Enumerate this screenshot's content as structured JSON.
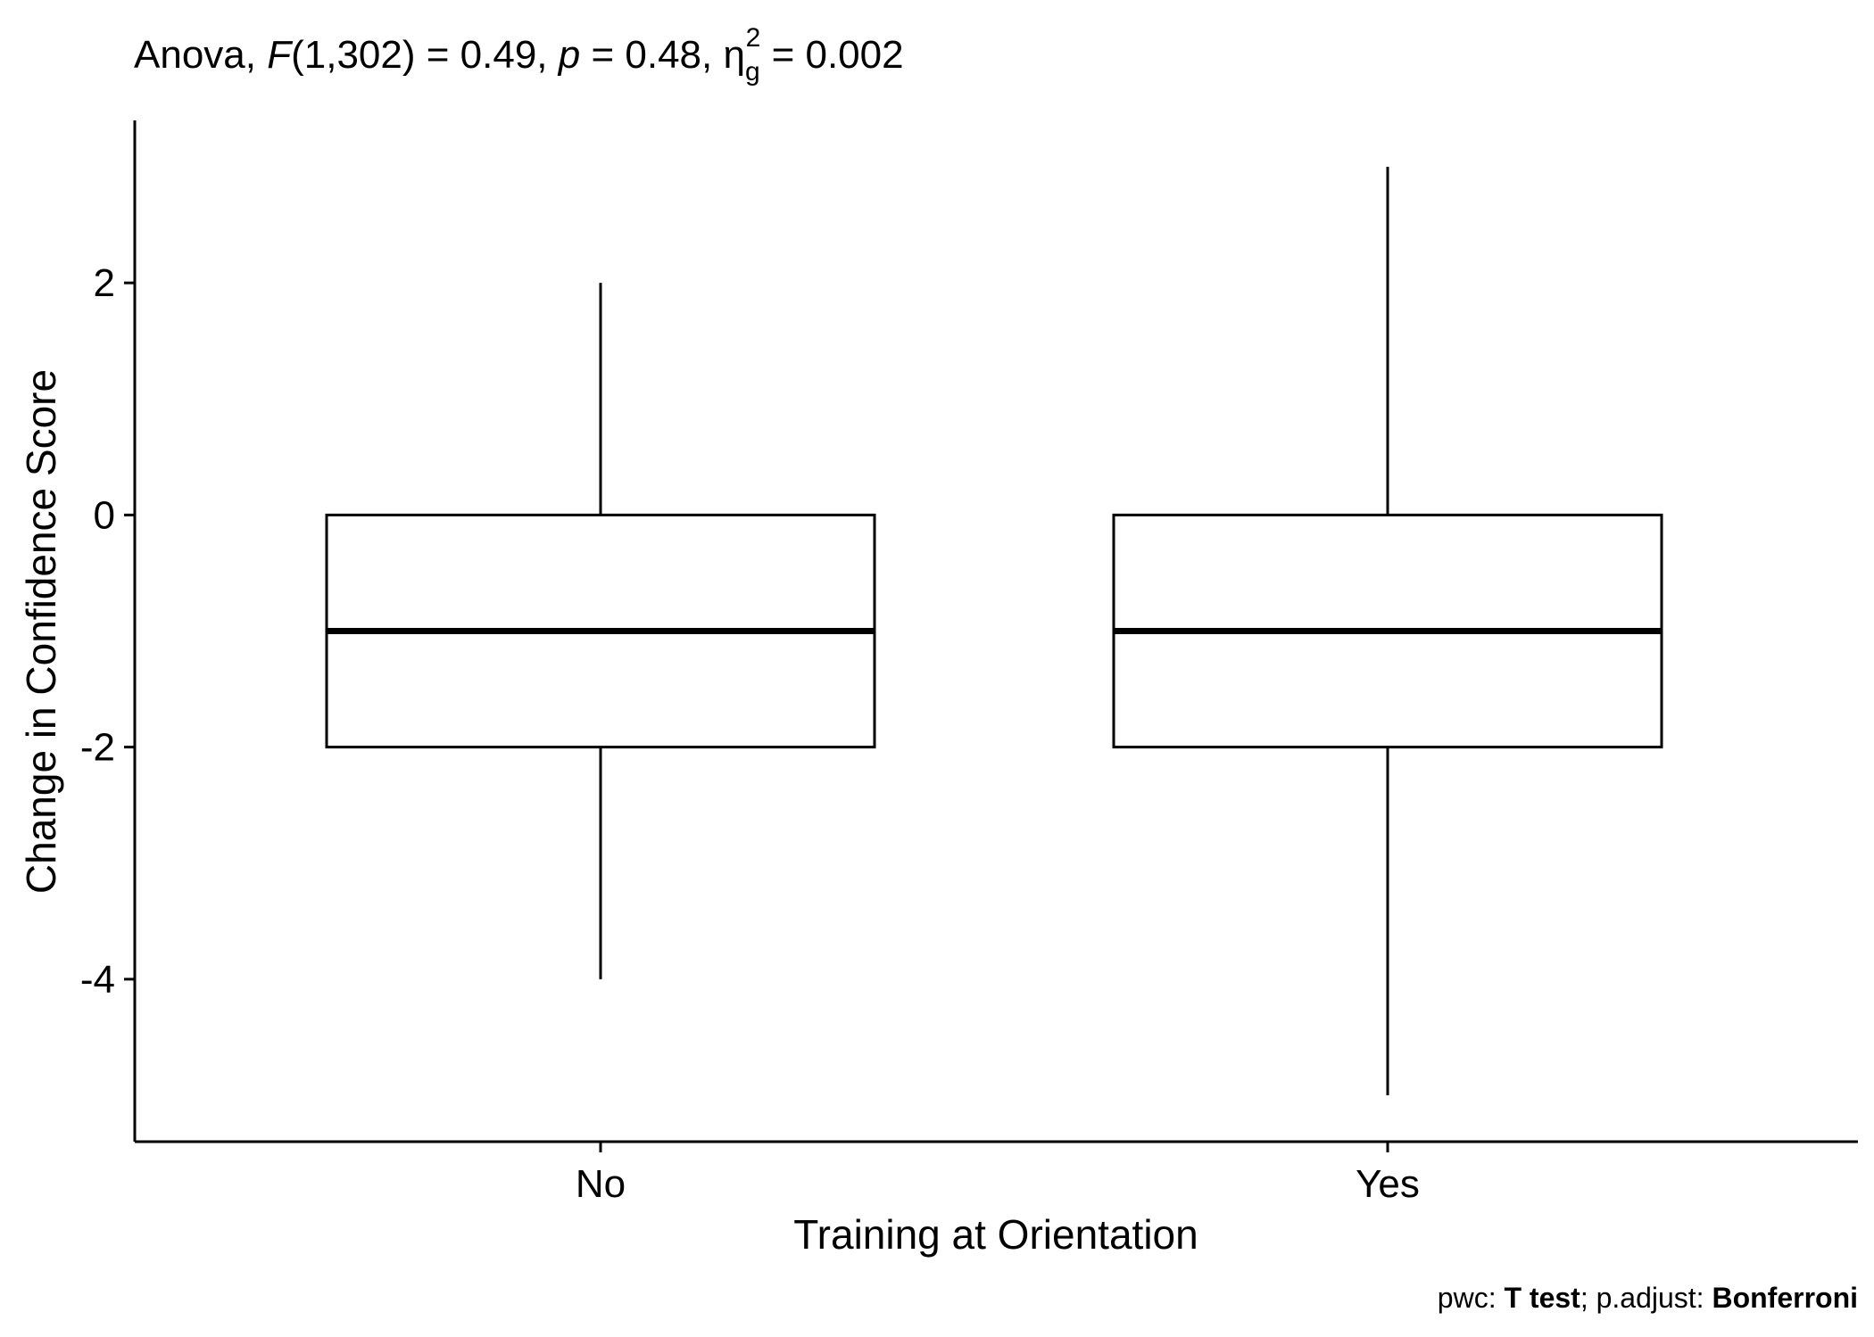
{
  "chart_data": {
    "type": "boxplot",
    "title_parts": {
      "prefix": "Anova, ",
      "f_symbol": "F",
      "f_args": "(1,302) = 0.49, ",
      "p_symbol": "p",
      "p_value": " = 0.48, ",
      "eta_symbol": "η",
      "eta_sub": "g",
      "eta_sup": "2",
      "eta_value": " = 0.002"
    },
    "xlabel": "Training at Orientation",
    "ylabel": "Change in Confidence Score",
    "categories": [
      "No",
      "Yes"
    ],
    "boxes": [
      {
        "category": "No",
        "min": -4,
        "q1": -2,
        "median": -1,
        "q3": 0,
        "max": 2
      },
      {
        "category": "Yes",
        "min": -5,
        "q1": -2,
        "median": -1,
        "q3": 0,
        "max": 3
      }
    ],
    "yticks": [
      -4,
      -2,
      0,
      2
    ],
    "ytick_labels": [
      "-4",
      "-2",
      "0",
      "2"
    ],
    "ylim": [
      -5.4,
      3.4
    ],
    "grid": false,
    "caption_parts": {
      "a": "pwc: ",
      "b": "T test",
      "c": "; p.adjust: ",
      "d": "Bonferroni"
    }
  }
}
